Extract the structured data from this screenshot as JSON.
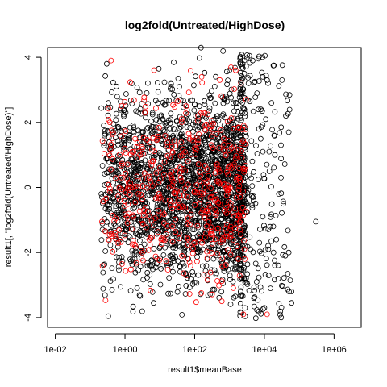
{
  "chart_data": {
    "type": "scatter",
    "title": "log2fold(Untreated/HighDose)",
    "xlabel": "result1$meanBase",
    "ylabel": "result1[, \"log2fold(Untreated/HighDose)\"]",
    "x_scale": "log10",
    "xlim": [
      0.006,
      6000000
    ],
    "ylim": [
      -4.3,
      4.3
    ],
    "x_ticks": [
      {
        "value": 0.01,
        "label": "1e-02"
      },
      {
        "value": 1,
        "label": "1e+00"
      },
      {
        "value": 100,
        "label": "1e+02"
      },
      {
        "value": 10000,
        "label": "1e+04"
      },
      {
        "value": 1000000,
        "label": "1e+06"
      }
    ],
    "y_ticks": [
      {
        "value": -4,
        "label": "-4"
      },
      {
        "value": -2,
        "label": "-2"
      },
      {
        "value": 0,
        "label": "0"
      },
      {
        "value": 2,
        "label": "2"
      },
      {
        "value": 4,
        "label": "4"
      }
    ],
    "grid": false,
    "legend": "none",
    "series": [
      {
        "color": "#000000",
        "marker": "open-circle",
        "points": [
          [
            2.5,
            0.1
          ],
          [
            0.3,
            3.8
          ],
          [
            5,
            -2.4
          ],
          [
            40,
            1.2
          ],
          [
            120,
            -0.6
          ],
          [
            800,
            2.8
          ],
          [
            2000,
            -1.5
          ],
          [
            3500,
            3.2
          ],
          [
            9000,
            3.4
          ],
          [
            12000,
            3.3
          ],
          [
            20000,
            1.0
          ],
          [
            30000,
            1.3
          ],
          [
            50000,
            1.7
          ],
          [
            300000,
            -1.05
          ],
          [
            35000,
            -0.5
          ],
          [
            40000,
            -2.1
          ],
          [
            50000,
            -2.0
          ],
          [
            60000,
            -3.2
          ],
          [
            60000,
            -3.55
          ],
          [
            20000,
            -2.4
          ],
          [
            15000,
            -3.1
          ],
          [
            10000,
            -3.7
          ],
          [
            25000,
            -2.8
          ],
          [
            18000,
            -1.2
          ],
          [
            22000,
            -1.6
          ],
          [
            14000,
            0.5
          ],
          [
            11000,
            2.1
          ],
          [
            16000,
            2.6
          ],
          [
            9000,
            -0.9
          ],
          [
            7000,
            1.8
          ],
          [
            6000,
            -2.9
          ],
          [
            4500,
            0.8
          ],
          [
            26000,
            -0.2
          ],
          [
            13000,
            -1.9
          ],
          [
            19000,
            1.6
          ],
          [
            8000,
            2.4
          ],
          [
            5000,
            -3.4
          ],
          [
            30000,
            0.3
          ]
        ]
      },
      {
        "color": "#ff0000",
        "marker": "open-circle",
        "points": [
          [
            0.4,
            3.9
          ],
          [
            0.8,
            2.5
          ],
          [
            2,
            -1.8
          ],
          [
            10,
            0.6
          ],
          [
            60,
            -2.7
          ],
          [
            200,
            1.9
          ],
          [
            600,
            -3.5
          ],
          [
            1500,
            3.6
          ],
          [
            2500,
            -3.9
          ],
          [
            12000,
            -3.9
          ],
          [
            3000,
            2.7
          ],
          [
            1800,
            -2.2
          ],
          [
            900,
            0.4
          ]
        ]
      }
    ],
    "series_note_none": ""
  }
}
